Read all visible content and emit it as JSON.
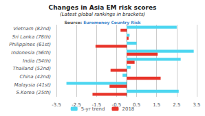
{
  "chart_data": {
    "type": "bar",
    "orientation": "horizontal",
    "title": "Changes in Asia EM risk scores",
    "subtitle": "(Latest global rankings in brackets)",
    "annotations": [
      "Source: ",
      "Euromoney Country Risk"
    ],
    "categories": [
      "Vietnam (82nd)",
      "Sri Lanka (78th)",
      "Philippines (61st)",
      "Indonesia (56th)",
      "India (54th)",
      "Thailand (52nd)",
      "China (42nd)",
      "Malaysia (41st)",
      "S.Korea (25th)"
    ],
    "series": [
      {
        "name": "5-yr trend",
        "color": "#4dd6f0",
        "values": [
          2.5,
          0.15,
          0.5,
          3.35,
          2.7,
          0.2,
          -0.2,
          -3.0,
          2.6
        ]
      },
      {
        "name": "2018",
        "color": "#e8342a",
        "values": [
          -0.3,
          0.1,
          -1.55,
          1.55,
          0.4,
          -0.8,
          1.7,
          -0.85,
          -1.7
        ]
      }
    ],
    "xlim": [
      -3.5,
      3.5
    ],
    "xticks": [
      -3.5,
      -2.5,
      -1.5,
      -0.5,
      0.5,
      1.5,
      2.5,
      3.5
    ],
    "grid": true,
    "legend": "bottom"
  }
}
